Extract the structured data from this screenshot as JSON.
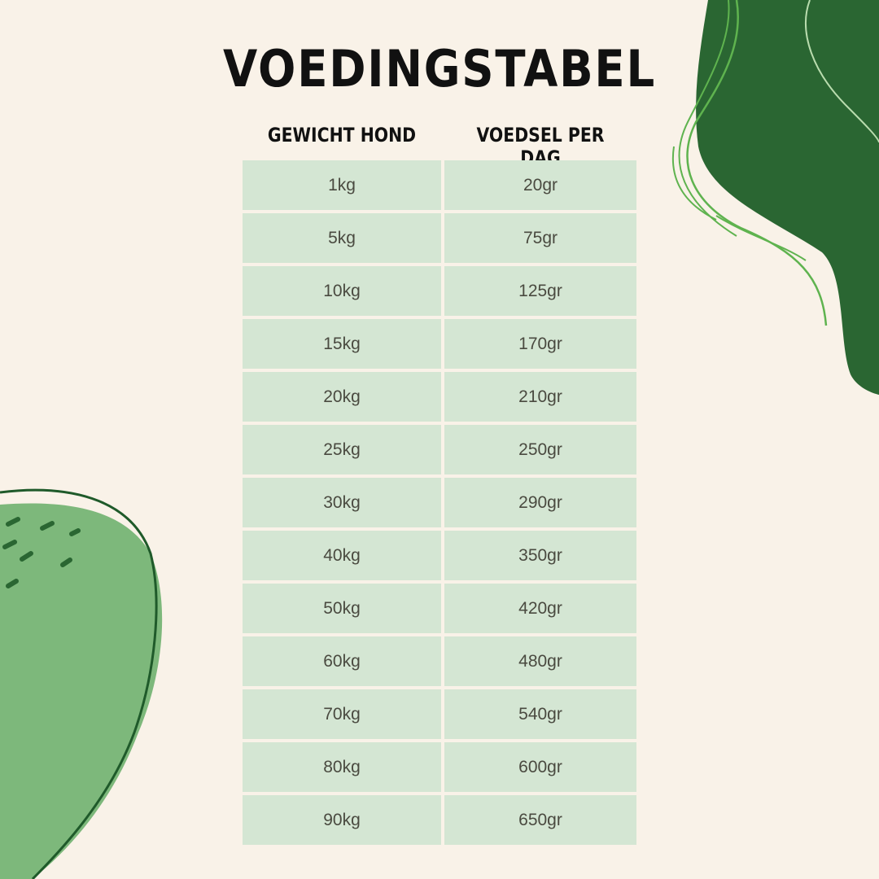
{
  "title": "VOEDINGSTABEL",
  "headers": [
    "GEWICHT HOND",
    "VOEDSEL PER DAG"
  ],
  "rows": [
    [
      "1kg",
      "20gr"
    ],
    [
      "5kg",
      "75gr"
    ],
    [
      "10kg",
      "125gr"
    ],
    [
      "15kg",
      "170gr"
    ],
    [
      "20kg",
      "210gr"
    ],
    [
      "25kg",
      "250gr"
    ],
    [
      "30kg",
      "290gr"
    ],
    [
      "40kg",
      "350gr"
    ],
    [
      "50kg",
      "420gr"
    ],
    [
      "60kg",
      "480gr"
    ],
    [
      "70kg",
      "540gr"
    ],
    [
      "80kg",
      "600gr"
    ],
    [
      "90kg",
      "650gr"
    ]
  ],
  "colors": {
    "background": "#f9f2e8",
    "cell": "#d4e6d3",
    "dark_green": "#2a6632",
    "light_green": "#7db87b",
    "line_green": "#5fb34f"
  }
}
